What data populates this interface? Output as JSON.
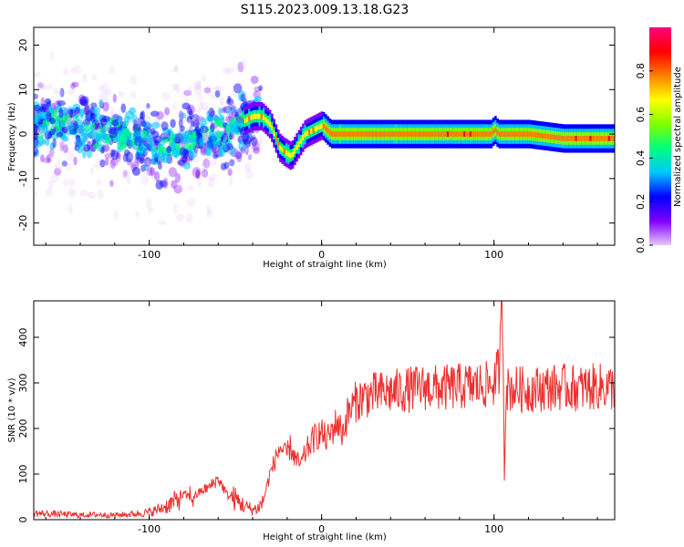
{
  "figure": {
    "title": "S115.2023.009.13.18.G23"
  },
  "chart_data": [
    {
      "type": "heatmap",
      "xlabel": "Height of straight line (km)",
      "ylabel": "Frequency (Hz)",
      "xlim": [
        -167,
        170
      ],
      "ylim": [
        -25,
        24
      ],
      "xticks": [
        -100,
        0,
        100
      ],
      "xtick_labels": [
        "-100",
        "0",
        "100"
      ],
      "yticks": [
        -20,
        -10,
        0,
        10,
        20
      ],
      "ytick_labels": [
        "-20",
        "-10",
        "0",
        "10",
        "20"
      ],
      "colorbar": {
        "label": "Normalized spectral amplitude",
        "range": [
          0,
          1
        ],
        "ticks": [
          0.0,
          0.2,
          0.4,
          0.6,
          0.8
        ],
        "tick_labels": [
          "0.0",
          "0.2",
          "0.4",
          "0.6",
          "0.8"
        ],
        "colormap": [
          "#e8c8f8",
          "#7f00ff",
          "#0000ff",
          "#00c8ff",
          "#00ff80",
          "#80ff00",
          "#ffff00",
          "#ff8000",
          "#ff0000",
          "#ff0080"
        ]
      },
      "ridge": {
        "x": [
          -167,
          -150,
          -130,
          -110,
          -100,
          -90,
          -80,
          -70,
          -60,
          -50,
          -45,
          -40,
          -35,
          -30,
          -25,
          -22,
          -18,
          -15,
          -10,
          -5,
          0,
          5,
          10,
          20,
          40,
          60,
          80,
          98,
          100,
          102,
          120,
          140,
          170
        ],
        "y": [
          2,
          2,
          1,
          0,
          -3,
          -3,
          -2,
          -1,
          1,
          2,
          3,
          4,
          4,
          2,
          -3,
          -4,
          -5,
          -3,
          0,
          1,
          2,
          0,
          0,
          0,
          0,
          0,
          0,
          0,
          1,
          0,
          0,
          -1,
          -1
        ]
      }
    },
    {
      "type": "line",
      "xlabel": "Height of straight line (km)",
      "ylabel": "SNR (10 * v/v)",
      "color": "#ee3030",
      "xlim": [
        -167,
        170
      ],
      "ylim": [
        0,
        480
      ],
      "xticks": [
        -100,
        0,
        100
      ],
      "xtick_labels": [
        "-100",
        "0",
        "100"
      ],
      "yticks": [
        0,
        100,
        200,
        300,
        400
      ],
      "ytick_labels": [
        "0",
        "100",
        "200",
        "300",
        "400"
      ],
      "x": [
        -167,
        -160,
        -150,
        -140,
        -130,
        -120,
        -110,
        -100,
        -95,
        -90,
        -85,
        -80,
        -75,
        -70,
        -65,
        -60,
        -57,
        -55,
        -50,
        -45,
        -40,
        -37,
        -34,
        -30,
        -27,
        -24,
        -21,
        -18,
        -15,
        -12,
        -9,
        -6,
        -3,
        0,
        3,
        6,
        9,
        12,
        15,
        20,
        25,
        30,
        40,
        50,
        60,
        70,
        80,
        90,
        95,
        100,
        103,
        105,
        106,
        107,
        108,
        110,
        120,
        130,
        140,
        150,
        160,
        170
      ],
      "y": [
        14,
        13,
        12,
        10,
        11,
        10,
        12,
        16,
        22,
        30,
        40,
        55,
        48,
        62,
        72,
        90,
        70,
        55,
        45,
        30,
        22,
        25,
        40,
        100,
        130,
        160,
        140,
        160,
        130,
        120,
        150,
        170,
        185,
        190,
        175,
        195,
        215,
        190,
        230,
        260,
        270,
        275,
        280,
        285,
        290,
        288,
        292,
        294,
        295,
        300,
        330,
        480,
        95,
        300,
        285,
        288,
        285,
        289,
        291,
        288,
        292,
        290
      ]
    }
  ]
}
